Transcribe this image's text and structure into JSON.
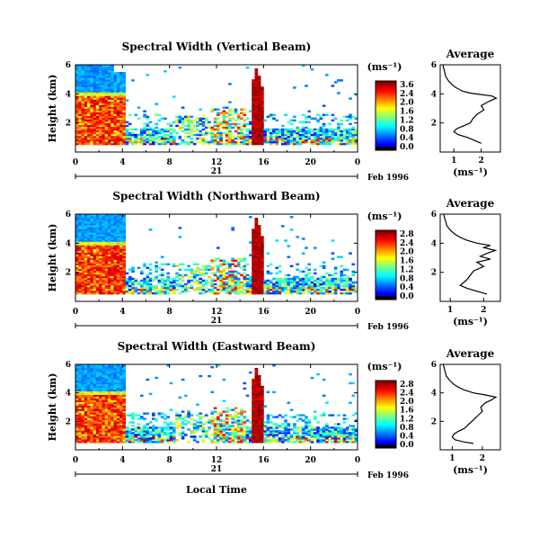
{
  "chart_data": [
    {
      "type": "heatmap",
      "title": "Spectral Width (Vertical Beam)",
      "ylabel": "Height (km)",
      "xticks": [
        "0",
        "4",
        "8",
        "12",
        "16",
        "20",
        "0"
      ],
      "yticks": [
        "6",
        "4",
        "2"
      ],
      "xlim": [
        0,
        24
      ],
      "ylim": [
        0,
        6
      ],
      "date_tick": "21",
      "date_label": "Feb 1996",
      "colorbar": {
        "unit": "(ms⁻¹)",
        "ticks": [
          "3.6",
          "2.4",
          "2.0",
          "1.6",
          "1.2",
          "0.8",
          "0.4",
          "0.0"
        ]
      },
      "average": {
        "title": "Average",
        "xlabel": "(ms⁻¹)",
        "xticks": [
          "1",
          "2"
        ],
        "yticks": [
          "6",
          "4",
          "2"
        ],
        "xlim": [
          0.5,
          2.7
        ],
        "ylim": [
          0,
          6
        ],
        "x": [
          0.6,
          0.65,
          0.7,
          0.8,
          0.95,
          1.1,
          1.3,
          1.6,
          2.0,
          2.4,
          2.55,
          2.3,
          2.0,
          2.1,
          1.85,
          1.7,
          1.6,
          1.35,
          1.1,
          1.0,
          1.15,
          1.5,
          1.75,
          2.0
        ],
        "y": [
          6.0,
          5.6,
          5.2,
          4.9,
          4.6,
          4.4,
          4.2,
          4.05,
          3.95,
          3.85,
          3.7,
          3.5,
          3.2,
          2.9,
          2.6,
          2.3,
          2.0,
          1.8,
          1.6,
          1.4,
          1.2,
          1.0,
          0.8,
          0.6
        ]
      }
    },
    {
      "type": "heatmap",
      "title": "Spectral Width (Northward Beam)",
      "ylabel": "Height (km)",
      "xticks": [
        "0",
        "4",
        "8",
        "12",
        "16",
        "20",
        "0"
      ],
      "yticks": [
        "6",
        "4",
        "2"
      ],
      "xlim": [
        0,
        24
      ],
      "ylim": [
        0,
        6
      ],
      "date_tick": "21",
      "date_label": "Feb 1996",
      "colorbar": {
        "unit": "(ms⁻¹)",
        "ticks": [
          "2.8",
          "2.4",
          "2.0",
          "1.6",
          "1.2",
          "0.8",
          "0.4",
          "0.0"
        ]
      },
      "average": {
        "title": "Average",
        "xlabel": "(ms⁻¹)",
        "xticks": [
          "1",
          "2"
        ],
        "yticks": [
          "6",
          "4",
          "2"
        ],
        "xlim": [
          0.7,
          2.5
        ],
        "ylim": [
          0,
          6
        ],
        "x": [
          0.8,
          0.85,
          0.9,
          1.0,
          1.15,
          1.3,
          1.5,
          1.8,
          2.2,
          2.0,
          2.35,
          2.1,
          1.9,
          2.2,
          1.8,
          2.0,
          1.7,
          1.6,
          1.5,
          1.4,
          1.3,
          1.5,
          1.8,
          2.1
        ],
        "y": [
          6.0,
          5.6,
          5.2,
          4.9,
          4.6,
          4.4,
          4.2,
          4.0,
          3.85,
          3.7,
          3.5,
          3.3,
          3.1,
          2.9,
          2.7,
          2.4,
          2.1,
          1.8,
          1.5,
          1.3,
          1.1,
          0.9,
          0.7,
          0.5
        ]
      }
    },
    {
      "type": "heatmap",
      "title": "Spectral Width (Eastward Beam)",
      "ylabel": "Height (km)",
      "xlabel": "Local Time",
      "xticks": [
        "0",
        "4",
        "8",
        "12",
        "16",
        "20",
        "0"
      ],
      "yticks": [
        "6",
        "4",
        "2"
      ],
      "xlim": [
        0,
        24
      ],
      "ylim": [
        0,
        6
      ],
      "date_tick": "21",
      "date_label": "Feb 1996",
      "colorbar": {
        "unit": "(ms⁻¹)",
        "ticks": [
          "2.8",
          "2.4",
          "2.0",
          "1.6",
          "1.2",
          "0.8",
          "0.4",
          "0.0"
        ]
      },
      "average": {
        "title": "Average",
        "xlabel": "(ms⁻¹)",
        "xticks": [
          "1",
          "2"
        ],
        "yticks": [
          "6",
          "4",
          "2"
        ],
        "xlim": [
          0.6,
          2.6
        ],
        "ylim": [
          0,
          6
        ],
        "x": [
          0.7,
          0.75,
          0.8,
          0.9,
          1.05,
          1.2,
          1.4,
          1.7,
          2.1,
          2.45,
          2.3,
          2.1,
          1.95,
          2.0,
          1.85,
          1.7,
          1.55,
          1.4,
          1.2,
          1.05,
          1.0,
          1.1,
          1.4,
          1.7
        ],
        "y": [
          6.0,
          5.6,
          5.2,
          4.9,
          4.6,
          4.4,
          4.2,
          4.0,
          3.85,
          3.7,
          3.5,
          3.3,
          3.0,
          2.7,
          2.4,
          2.1,
          1.8,
          1.5,
          1.3,
          1.1,
          0.9,
          0.7,
          0.55,
          0.45
        ]
      }
    }
  ]
}
